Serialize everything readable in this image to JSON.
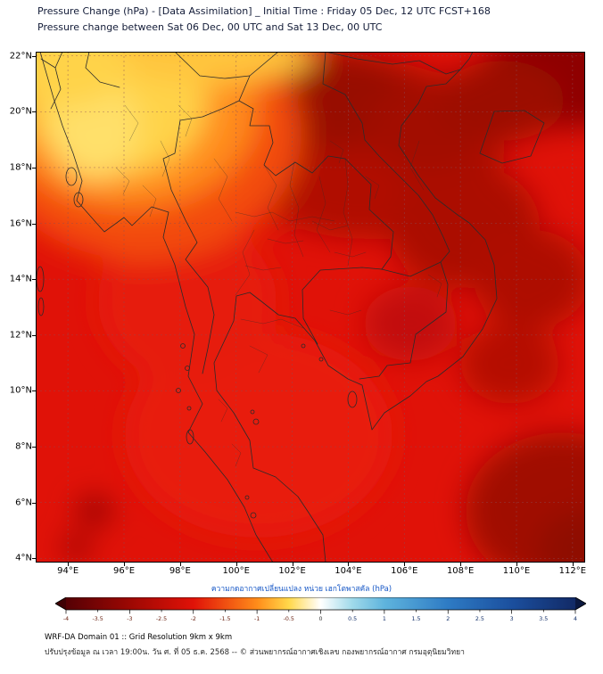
{
  "header": {
    "title_line1": "Pressure Change (hPa) - [Data Assimilation] _ Initial Time : Friday 05 Dec, 12 UTC FCST+168",
    "title_line2": "Pressure change between Sat 06 Dec, 00 UTC and Sat 13 Dec, 00 UTC"
  },
  "footer": {
    "line1": "WRF-DA Domain 01 :: Grid Resolution 9km x 9km",
    "line2": "ปรับปรุงข้อมูล ณ เวลา 19:00น. วัน ศ. ที่ 05 ธ.ค. 2568 -- © ส่วนพยากรณ์อากาศเชิงเลข กองพยากรณ์อากาศ กรมอุตุนิยมวิทยา"
  },
  "colors": {
    "base_red": "#e01208",
    "title_text": "#131c38",
    "colorbar_label_text": "#1657c6"
  },
  "chart_data": {
    "type": "heatmap",
    "title": "Pressure Change (hPa) - [Data Assimilation] _ Initial Time : Friday 05 Dec, 12 UTC FCST+168",
    "subtitle": "Pressure change between Sat 06 Dec, 00 UTC and Sat 13 Dec, 00 UTC",
    "xlabel": "",
    "ylabel": "",
    "grid": true,
    "xlim": [
      92.85,
      112.45
    ],
    "ylim": [
      3.85,
      22.15
    ],
    "x_ticks": [
      {
        "v": 94,
        "label": "94°E"
      },
      {
        "v": 96,
        "label": "96°E"
      },
      {
        "v": 98,
        "label": "98°E"
      },
      {
        "v": 100,
        "label": "100°E"
      },
      {
        "v": 102,
        "label": "102°E"
      },
      {
        "v": 104,
        "label": "104°E"
      },
      {
        "v": 106,
        "label": "106°E"
      },
      {
        "v": 108,
        "label": "108°E"
      },
      {
        "v": 110,
        "label": "110°E"
      },
      {
        "v": 112,
        "label": "112°E"
      }
    ],
    "y_ticks": [
      {
        "v": 22,
        "label": "22°N"
      },
      {
        "v": 20,
        "label": "20°N"
      },
      {
        "v": 18,
        "label": "18°N"
      },
      {
        "v": 16,
        "label": "16°N"
      },
      {
        "v": 14,
        "label": "14°N"
      },
      {
        "v": 12,
        "label": "12°N"
      },
      {
        "v": 10,
        "label": "10°N"
      },
      {
        "v": 8,
        "label": "8°N"
      },
      {
        "v": 6,
        "label": "6°N"
      },
      {
        "v": 4,
        "label": "4°N"
      }
    ],
    "colorbar": {
      "label": "ความกดอากาศเปลี่ยนแปลง หน่วย เฮกโตพาสคัล (hPa)",
      "orientation": "horizontal",
      "range": [
        -4,
        4
      ],
      "tick_values": [
        -4,
        -3.5,
        -3,
        -2.5,
        -2,
        -1.5,
        -1,
        -0.5,
        0,
        0.5,
        1,
        1.5,
        2,
        2.5,
        3,
        3.5,
        4
      ],
      "stops": [
        {
          "v": -4,
          "c": "#550004"
        },
        {
          "v": -3,
          "c": "#9c0803"
        },
        {
          "v": -2,
          "c": "#e01208"
        },
        {
          "v": -1,
          "c": "#ff8c1a"
        },
        {
          "v": -0.5,
          "c": "#ffd84a"
        },
        {
          "v": 0,
          "c": "#ffffff"
        },
        {
          "v": 0.5,
          "c": "#9fd9ea"
        },
        {
          "v": 1,
          "c": "#5fb4dd"
        },
        {
          "v": 2,
          "c": "#2e7bc4"
        },
        {
          "v": 3,
          "c": "#1b4f9e"
        },
        {
          "v": 4,
          "c": "#122a66"
        }
      ],
      "under_color": "#3f0004",
      "over_color": "#0a1840"
    },
    "field_summary": "Pressure change is negative over the entire domain (about -0.5 to -3.5 hPa, all reds). Weakest fall (-0.5 to -1 hPa, yellow/orange) over the NW corner near 94-97E / 20-22N; strongest fall (about -3 hPa, dark red) over 102-106E / 20-22N, the NE corner, and the SE corner of the domain.",
    "grid_lons": [
      94,
      96,
      98,
      100,
      102,
      104,
      106,
      108,
      110,
      112
    ],
    "grid_lats": [
      22,
      20,
      18,
      16,
      14,
      12,
      10,
      8,
      6,
      4
    ],
    "values_hpa": [
      [
        -0.7,
        -0.5,
        -1.2,
        -2.0,
        -3.0,
        -3.2,
        -3.0,
        -2.7,
        -2.9,
        -3.0
      ],
      [
        -0.6,
        -0.6,
        -1.4,
        -2.2,
        -3.0,
        -2.9,
        -2.6,
        -2.5,
        -2.6,
        -2.8
      ],
      [
        -1.3,
        -1.8,
        -2.2,
        -2.4,
        -2.8,
        -2.9,
        -2.5,
        -2.7,
        -2.6,
        -2.5
      ],
      [
        -2.2,
        -2.3,
        -2.4,
        -2.4,
        -2.6,
        -2.8,
        -2.6,
        -2.8,
        -2.7,
        -2.4
      ],
      [
        -2.3,
        -2.3,
        -2.3,
        -2.4,
        -2.5,
        -2.5,
        -2.4,
        -2.5,
        -2.7,
        -2.5
      ],
      [
        -2.3,
        -2.3,
        -2.3,
        -2.4,
        -2.4,
        -2.6,
        -2.4,
        -2.4,
        -2.8,
        -2.9
      ],
      [
        -2.4,
        -2.3,
        -2.3,
        -2.3,
        -2.4,
        -2.4,
        -2.3,
        -2.4,
        -2.6,
        -2.7
      ],
      [
        -2.5,
        -2.4,
        -2.3,
        -2.3,
        -2.3,
        -2.4,
        -2.4,
        -2.5,
        -2.8,
        -3.0
      ],
      [
        -2.6,
        -2.4,
        -2.3,
        -2.2,
        -2.3,
        -2.3,
        -2.4,
        -2.6,
        -2.9,
        -3.1
      ],
      [
        -2.5,
        -2.4,
        -2.3,
        -2.2,
        -2.3,
        -2.4,
        -2.5,
        -2.7,
        -3.0,
        -3.1
      ]
    ]
  }
}
